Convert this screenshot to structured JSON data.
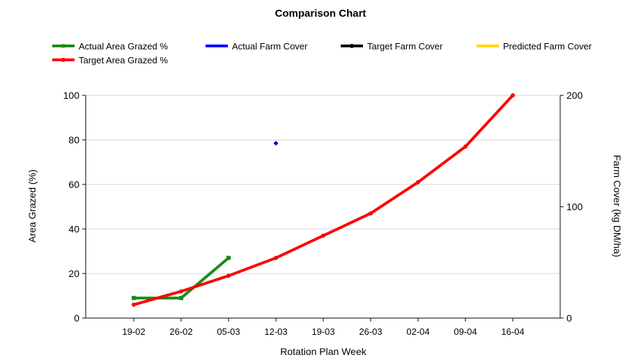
{
  "chart_data": {
    "type": "line",
    "title": "Comparison Chart",
    "xlabel": "Rotation Plan Week",
    "ylabel": "Area Grazed (%)",
    "y2label": "Farm Cover (kg DM/ha)",
    "ylim": [
      0,
      100
    ],
    "y2lim": [
      0,
      200
    ],
    "yticks": [
      0,
      20,
      40,
      60,
      80,
      100
    ],
    "y2ticks": [
      0,
      100,
      200
    ],
    "categories": [
      "19-02",
      "26-02",
      "05-03",
      "12-03",
      "19-03",
      "26-03",
      "02-04",
      "09-04",
      "16-04"
    ],
    "grid": true,
    "legend_position": "top",
    "legend": [
      {
        "name": "Actual Area Grazed %",
        "color": "#1a8a1a"
      },
      {
        "name": "Actual Farm Cover",
        "color": "#0000ff"
      },
      {
        "name": "Target Farm Cover",
        "color": "#000000"
      },
      {
        "name": "Predicted Farm Cover",
        "color": "#ffd700"
      },
      {
        "name": "Target Area Grazed %",
        "color": "#ff0000"
      }
    ],
    "series": [
      {
        "name": "Actual Area Grazed %",
        "axis": "left",
        "color": "#1a8a1a",
        "marker": "square",
        "values": [
          9,
          9,
          27,
          null,
          null,
          null,
          null,
          null,
          null
        ]
      },
      {
        "name": "Target Area Grazed %",
        "axis": "left",
        "color": "#ff0000",
        "marker": "circle",
        "values": [
          6,
          12,
          19,
          27,
          37,
          47,
          61,
          77,
          100
        ]
      },
      {
        "name": "Actual Farm Cover",
        "axis": "right",
        "color": "#0000ff",
        "marker": "diamond",
        "values": [
          null,
          null,
          null,
          157,
          null,
          null,
          null,
          null,
          null
        ]
      },
      {
        "name": "Target Farm Cover",
        "axis": "right",
        "color": "#000000",
        "marker": "circle",
        "values": [
          null,
          null,
          null,
          null,
          null,
          null,
          null,
          null,
          null
        ]
      },
      {
        "name": "Predicted Farm Cover",
        "axis": "right",
        "color": "#ffd700",
        "marker": "circle",
        "values": [
          null,
          null,
          null,
          null,
          null,
          null,
          null,
          null,
          null
        ]
      }
    ]
  }
}
